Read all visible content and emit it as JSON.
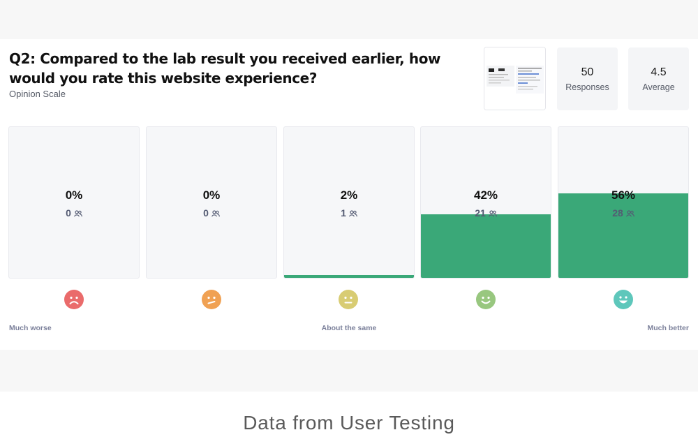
{
  "question": {
    "title": "Q2: Compared to the lab result you received earlier, how would you rate this website experience?",
    "type": "Opinion Scale"
  },
  "stats": {
    "responses": {
      "value": "50",
      "label": "Responses"
    },
    "average": {
      "value": "4.5",
      "label": "Average"
    }
  },
  "scale": [
    {
      "percent_label": "0%",
      "count": "0",
      "fill_percent": 0,
      "face": "sad-face-icon",
      "color": "#ea6b6b"
    },
    {
      "percent_label": "0%",
      "count": "0",
      "fill_percent": 0,
      "face": "unsure-face-icon",
      "color": "#f0a153"
    },
    {
      "percent_label": "2%",
      "count": "1",
      "fill_percent": 2,
      "face": "neutral-face-icon",
      "color": "#d8cc73"
    },
    {
      "percent_label": "42%",
      "count": "21",
      "fill_percent": 42,
      "face": "smile-face-icon",
      "color": "#98c77f"
    },
    {
      "percent_label": "56%",
      "count": "28",
      "fill_percent": 56,
      "face": "big-smile-face-icon",
      "color": "#5ec7bb"
    }
  ],
  "scale_labels": {
    "low": "Much worse",
    "mid": "About the same",
    "high": "Much better"
  },
  "colors": {
    "fill": "#3aa878",
    "bar_background": "#f6f7f9"
  },
  "footer_caption": "Data from User Testing"
}
